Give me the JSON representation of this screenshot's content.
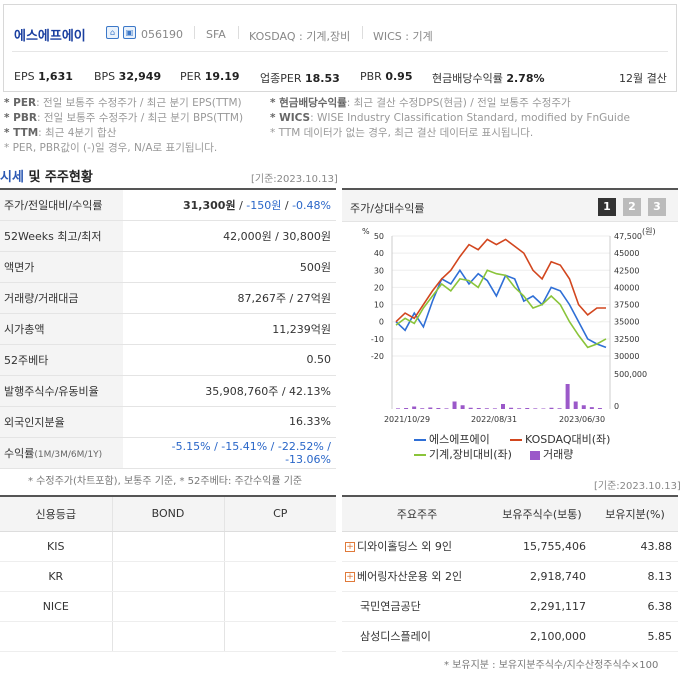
{
  "header": {
    "name": "에스에프에이",
    "code": "056190",
    "eng": "SFA",
    "market": "KOSDAQ : 기계,장비",
    "wics": "WICS : 기계"
  },
  "ratios": [
    {
      "label": "EPS",
      "value": "1,631"
    },
    {
      "label": "BPS",
      "value": "32,949"
    },
    {
      "label": "PER",
      "value": "19.19"
    },
    {
      "label": "업종PER",
      "value": "18.53"
    },
    {
      "label": "PBR",
      "value": "0.95"
    },
    {
      "label": "현금배당수익률",
      "value": "2.78%"
    }
  ],
  "settlement": "12월 결산",
  "notes": {
    "per_k": "* PER",
    "per_v": ": 전일 보통주 수정주가 / 최근 분기 EPS(TTM)",
    "pbr_k": "* PBR",
    "pbr_v": ": 전일 보통주 수정주가 / 최근 분기 BPS(TTM)",
    "ttm_k": "* TTM",
    "ttm_v": ": 최근 4분기 합산",
    "neg": "* PER, PBR값이 (-)일 경우, N/A로 표기됩니다.",
    "div_k": "* 현금배당수익률",
    "div_v": ": 최근 결산 수정DPS(현금) / 전일 보통주 수정주가",
    "wics_k": "* WICS",
    "wics_v": ": WISE Industry Classification Standard, modified by FnGuide",
    "ttm2": "* TTM 데이터가 없는 경우, 최근 결산 데이터로 표시됩니다."
  },
  "section": {
    "title_a": "시세",
    "title_b": " 및 주주현황",
    "base_date": "[기준:2023.10.13]"
  },
  "market": {
    "price_label": "주가/전일대비/수익률",
    "price": "31,300원",
    "diff": "-150원",
    "rate": "-0.48%",
    "rows": [
      {
        "label": "52Weeks 최고/최저",
        "value": "42,000원 / 30,800원"
      },
      {
        "label": "액면가",
        "value": "500원"
      },
      {
        "label": "거래량/거래대금",
        "value": "87,267주 / 27억원"
      },
      {
        "label": "시가총액",
        "value": "11,239억원"
      },
      {
        "label": "52주베타",
        "value": "0.50"
      },
      {
        "label": "발행주식수/유동비율",
        "value": "35,908,760주 / 42.13%"
      },
      {
        "label": "외국인지분율",
        "value": "16.33%"
      }
    ],
    "ret_label": "수익률",
    "ret_sub": "(1M/3M/6M/1Y)",
    "ret_value": "-5.15% / -15.41% / -22.52% / -13.06%"
  },
  "footnote1": "* 수정주가(차트포함), 보통주 기준, * 52주베타: 주간수익률 기준",
  "chart_panel": {
    "title": "주가/상대수익률",
    "tabs": [
      "1",
      "2",
      "3"
    ]
  },
  "chart_data": {
    "type": "line",
    "x_ticks": [
      "2021/10/29",
      "2022/08/31",
      "2023/06/30"
    ],
    "left_unit": "%",
    "right_unit": "(원)",
    "left_ticks": [
      50,
      40,
      30,
      20,
      10,
      0,
      -10,
      -20
    ],
    "right_ticks": [
      "47,500",
      "45000",
      "42500",
      "40000",
      "37500",
      "35000",
      "32500",
      "30000"
    ],
    "volume_ticks": [
      "500,000",
      "0"
    ],
    "series": [
      {
        "name": "에스에프에이",
        "color": "#2f6fd6",
        "values": [
          0,
          -5,
          5,
          -3,
          12,
          25,
          22,
          30,
          22,
          28,
          24,
          15,
          27,
          25,
          12,
          15,
          10,
          20,
          18,
          10,
          0,
          -10,
          -13,
          -15
        ]
      },
      {
        "name": "KOSDAQ대비(좌)",
        "color": "#d2461e",
        "values": [
          0,
          5,
          2,
          10,
          18,
          25,
          30,
          38,
          45,
          42,
          48,
          45,
          48,
          44,
          40,
          30,
          25,
          35,
          33,
          25,
          10,
          4,
          8,
          8
        ]
      },
      {
        "name": "기계,장비대비(좌)",
        "color": "#8ac43a",
        "values": [
          -2,
          2,
          -1,
          8,
          15,
          22,
          18,
          25,
          24,
          20,
          30,
          28,
          27,
          20,
          15,
          8,
          10,
          15,
          10,
          0,
          -8,
          -15,
          -13,
          -10
        ]
      }
    ],
    "volume": {
      "name": "거래량",
      "color": "#9b59c9",
      "values": [
        5,
        8,
        20,
        6,
        12,
        8,
        5,
        60,
        30,
        10,
        8,
        6,
        5,
        40,
        10,
        6,
        8,
        5,
        4,
        10,
        6,
        200,
        60,
        30,
        15,
        8
      ]
    }
  },
  "right_base_date": "[기준:2023.10.13]",
  "credit": {
    "headers": [
      "신용등급",
      "BOND",
      "CP"
    ],
    "rows": [
      [
        "KIS",
        "",
        ""
      ],
      [
        "KR",
        "",
        ""
      ],
      [
        "NICE",
        "",
        ""
      ],
      [
        "",
        "",
        ""
      ]
    ]
  },
  "holders": {
    "headers": [
      "주요주주",
      "보유주식수(보통)",
      "보유지분(%)"
    ],
    "rows": [
      {
        "name": "디와이홀딩스 외 9인",
        "shares": "15,755,406",
        "pct": "43.88",
        "plus": true
      },
      {
        "name": "베어링자산운용 외 2인",
        "shares": "2,918,740",
        "pct": "8.13",
        "plus": true
      },
      {
        "name": "국민연금공단",
        "shares": "2,291,117",
        "pct": "6.38",
        "plus": false
      },
      {
        "name": "삼성디스플레이",
        "shares": "2,100,000",
        "pct": "5.85",
        "plus": false
      }
    ]
  },
  "footnote2": "* 보유지분 : 보유지분주식수/지수산정주식수×100"
}
